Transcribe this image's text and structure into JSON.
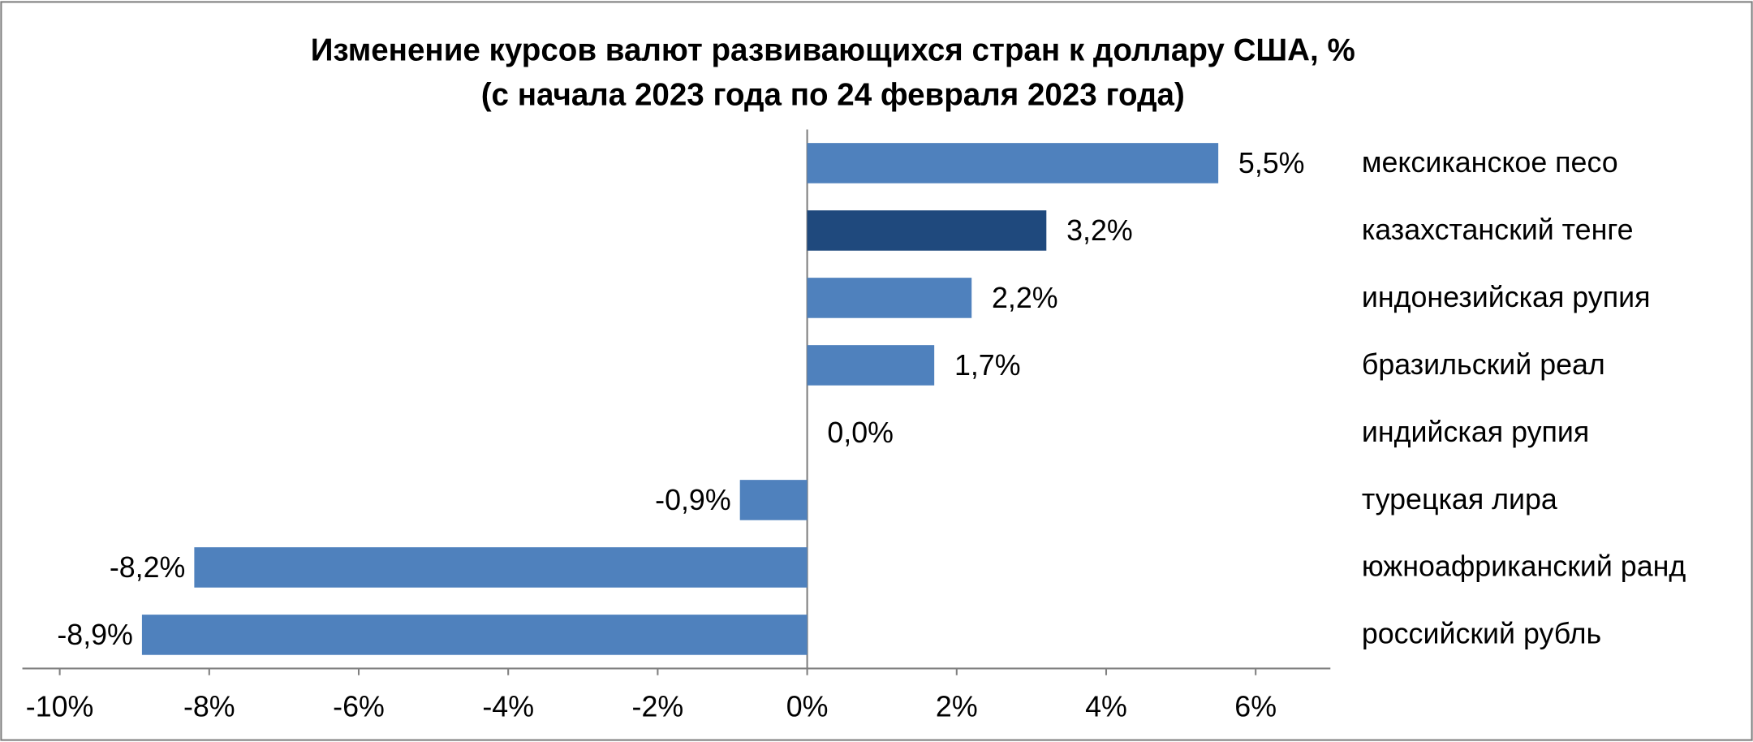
{
  "chart_data": {
    "type": "hbar",
    "title": "Изменение курсов валют развивающихся стран к доллару США, %",
    "subtitle": "(с начала 2023 года по 24 февраля 2023 года)",
    "categories": [
      "мексиканское песо",
      "казахстанский тенге",
      "индонезийская рупия",
      "бразильский реал",
      "индийская рупия",
      "турецкая лира",
      "южноафриканский ранд",
      "российский рубль"
    ],
    "values": [
      5.5,
      3.2,
      2.2,
      1.7,
      0.0,
      -0.9,
      -8.2,
      -8.9
    ],
    "value_labels": [
      "5,5%",
      "3,2%",
      "2,2%",
      "1,7%",
      "0,0%",
      "-0,9%",
      "-8,2%",
      "-8,9%"
    ],
    "colors": [
      "#4f81bd",
      "#1f497d",
      "#4f81bd",
      "#4f81bd",
      "#4f81bd",
      "#4f81bd",
      "#4f81bd",
      "#4f81bd"
    ],
    "xlim": [
      -10.5,
      7
    ],
    "xticks": [
      {
        "value": -10,
        "label": "-10%"
      },
      {
        "value": -8,
        "label": "-8%"
      },
      {
        "value": -6,
        "label": "-6%"
      },
      {
        "value": -4,
        "label": "-4%"
      },
      {
        "value": -2,
        "label": "-2%"
      },
      {
        "value": 0,
        "label": "0%"
      },
      {
        "value": 2,
        "label": "2%"
      },
      {
        "value": 4,
        "label": "4%"
      },
      {
        "value": 6,
        "label": "6%"
      }
    ]
  }
}
